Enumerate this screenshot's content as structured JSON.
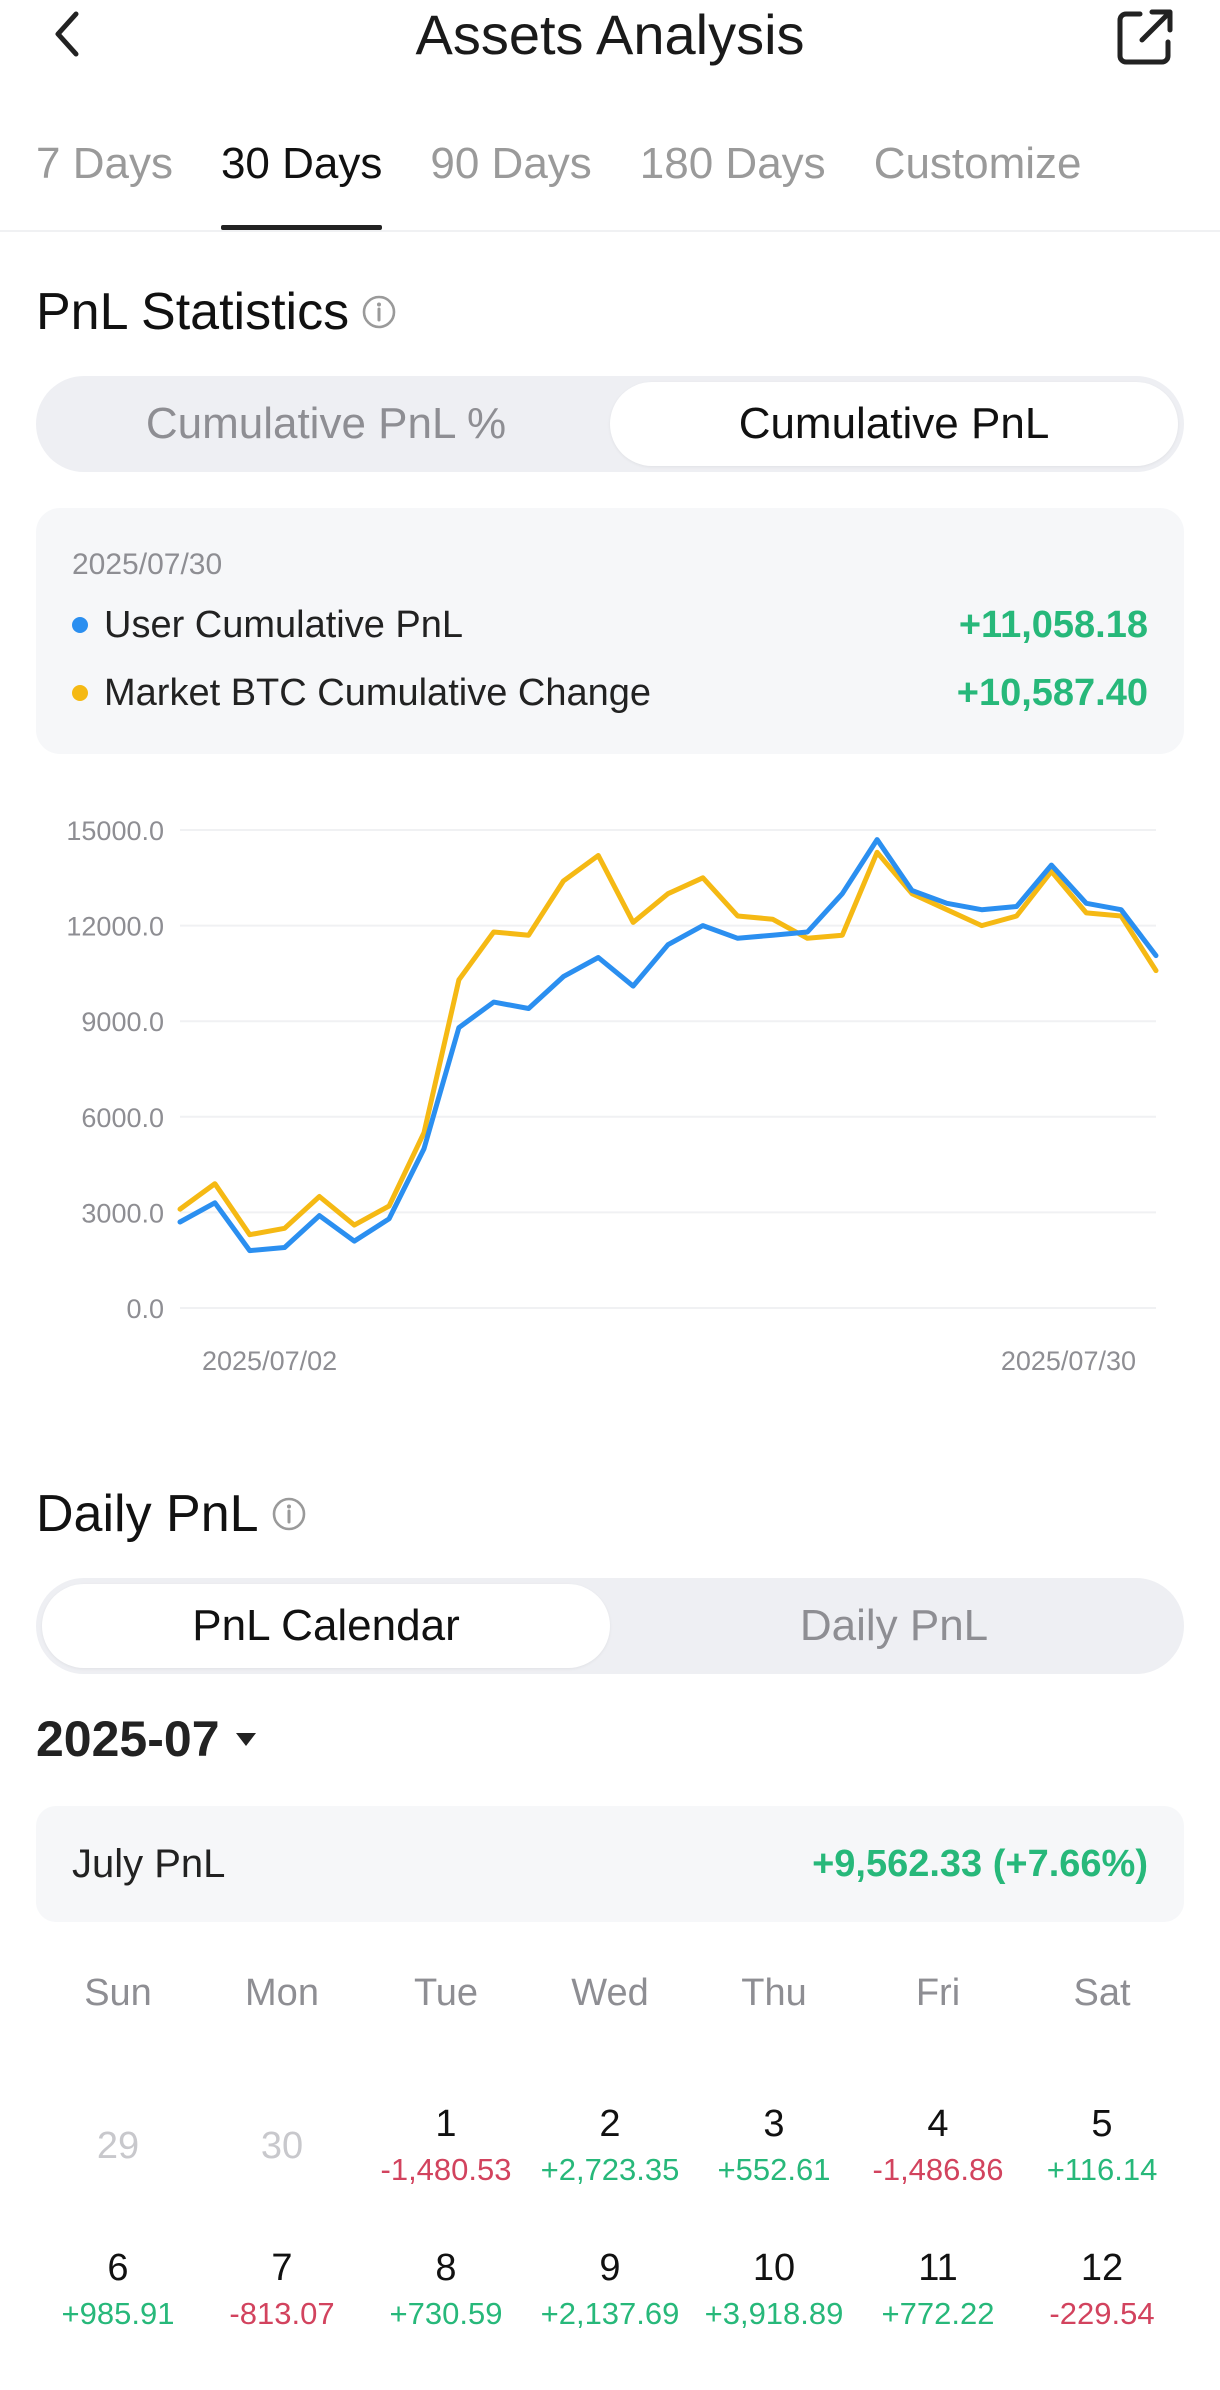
{
  "header": {
    "title": "Assets Analysis"
  },
  "tabs": [
    {
      "label": "7 Days",
      "active": false
    },
    {
      "label": "30 Days",
      "active": true
    },
    {
      "label": "90 Days",
      "active": false
    },
    {
      "label": "180 Days",
      "active": false
    },
    {
      "label": "Customize",
      "active": false
    }
  ],
  "pnl_stats": {
    "title": "PnL Statistics",
    "toggle": {
      "left": "Cumulative PnL %",
      "right": "Cumulative PnL",
      "selected": "right"
    },
    "summary": {
      "date": "2025/07/30",
      "rows": [
        {
          "label": "User Cumulative PnL",
          "value": "+11,058.18",
          "color": "#2b8ff0"
        },
        {
          "label": "Market BTC Cumulative Change",
          "value": "+10,587.40",
          "color": "#f5b914"
        }
      ]
    }
  },
  "chart_data": {
    "type": "line",
    "x": [
      "2025/07/02",
      "2025/07/03",
      "2025/07/04",
      "2025/07/05",
      "2025/07/06",
      "2025/07/07",
      "2025/07/08",
      "2025/07/09",
      "2025/07/10",
      "2025/07/11",
      "2025/07/12",
      "2025/07/13",
      "2025/07/14",
      "2025/07/15",
      "2025/07/16",
      "2025/07/17",
      "2025/07/18",
      "2025/07/19",
      "2025/07/20",
      "2025/07/21",
      "2025/07/22",
      "2025/07/23",
      "2025/07/24",
      "2025/07/25",
      "2025/07/26",
      "2025/07/27",
      "2025/07/28",
      "2025/07/29",
      "2025/07/30"
    ],
    "series": [
      {
        "name": "User Cumulative PnL",
        "color": "#2b8ff0",
        "values": [
          2700,
          3300,
          1800,
          1900,
          2900,
          2100,
          2800,
          5000,
          8800,
          9600,
          9400,
          10400,
          11000,
          10100,
          11400,
          12000,
          11600,
          11700,
          11800,
          13000,
          14700,
          13100,
          12700,
          12500,
          12600,
          13900,
          12700,
          12500,
          11058
        ]
      },
      {
        "name": "Market BTC Cumulative Change",
        "color": "#f5b914",
        "values": [
          3100,
          3900,
          2300,
          2500,
          3500,
          2600,
          3200,
          5500,
          10300,
          11800,
          11700,
          13400,
          14200,
          12100,
          13000,
          13500,
          12300,
          12200,
          11600,
          11700,
          14300,
          13000,
          12500,
          12000,
          12300,
          13700,
          12400,
          12300,
          10587
        ]
      }
    ],
    "ylim": [
      0,
      15000
    ],
    "yticks": [
      "15000.0",
      "12000.0",
      "9000.0",
      "6000.0",
      "3000.0",
      "0.0"
    ],
    "xtick_labels": [
      "2025/07/02",
      "2025/07/30"
    ],
    "grid": true
  },
  "daily_pnl": {
    "title": "Daily PnL",
    "toggle": {
      "left": "PnL Calendar",
      "right": "Daily PnL",
      "selected": "left"
    },
    "month": "2025-07",
    "month_label": "July PnL",
    "month_value": "+9,562.33 (+7.66%)",
    "weekdays": [
      "Sun",
      "Mon",
      "Tue",
      "Wed",
      "Thu",
      "Fri",
      "Sat"
    ],
    "weeks": [
      [
        {
          "day": "29",
          "pnl": "",
          "muted": true
        },
        {
          "day": "30",
          "pnl": "",
          "muted": true
        },
        {
          "day": "1",
          "pnl": "-1,480.53"
        },
        {
          "day": "2",
          "pnl": "+2,723.35"
        },
        {
          "day": "3",
          "pnl": "+552.61"
        },
        {
          "day": "4",
          "pnl": "-1,486.86"
        },
        {
          "day": "5",
          "pnl": "+116.14"
        }
      ],
      [
        {
          "day": "6",
          "pnl": "+985.91"
        },
        {
          "day": "7",
          "pnl": "-813.07"
        },
        {
          "day": "8",
          "pnl": "+730.59"
        },
        {
          "day": "9",
          "pnl": "+2,137.69"
        },
        {
          "day": "10",
          "pnl": "+3,918.89"
        },
        {
          "day": "11",
          "pnl": "+772.22"
        },
        {
          "day": "12",
          "pnl": "-229.54"
        }
      ]
    ]
  }
}
